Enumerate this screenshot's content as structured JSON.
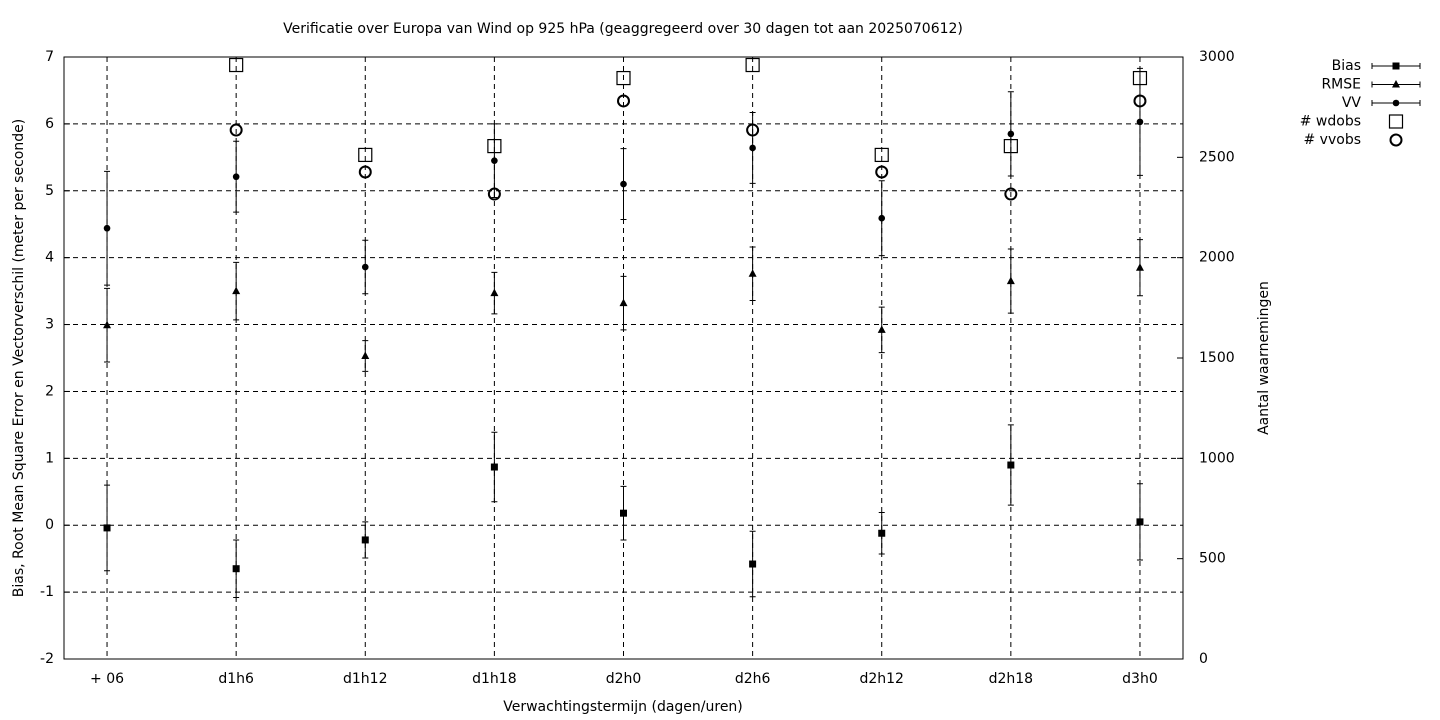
{
  "chart_data": {
    "type": "errorbar",
    "title": "Verificatie over Europa van Wind op 925 hPa (geaggregeerd over 30 dagen tot aan 2025070612)",
    "x_label": "Verwachtingstermijn (dagen/uren)",
    "y_label": "Bias, Root Mean Square Error en Vectorverschil (meter per seconde)",
    "y2_label": "Aantal waarnemingen",
    "categories": [
      "+ 06",
      "d1h6",
      "d1h12",
      "d1h18",
      "d2h0",
      "d2h6",
      "d2h12",
      "d2h18",
      "d3h0"
    ],
    "ylim": [
      -2,
      7
    ],
    "yticks": [
      -2,
      -1,
      0,
      1,
      2,
      3,
      4,
      5,
      6,
      7
    ],
    "y2lim": [
      0,
      3000
    ],
    "y2ticks": [
      0,
      500,
      1000,
      1500,
      2000,
      2500,
      3000
    ],
    "grid": true,
    "legend": "top-right",
    "series": [
      {
        "name": "Bias",
        "color": "#000000",
        "marker": "square",
        "values": [
          -0.04,
          -0.65,
          -0.22,
          0.87,
          0.18,
          -0.58,
          -0.12,
          0.9,
          0.05
        ],
        "errors": [
          0.64,
          0.43,
          0.27,
          0.52,
          0.4,
          0.49,
          0.31,
          0.6,
          0.57
        ]
      },
      {
        "name": "RMSE",
        "color": "#000000",
        "marker": "triangle",
        "values": [
          2.99,
          3.5,
          2.53,
          3.47,
          3.32,
          3.76,
          2.92,
          3.65,
          3.85
        ],
        "errors": [
          0.55,
          0.43,
          0.23,
          0.31,
          0.4,
          0.4,
          0.34,
          0.48,
          0.42
        ]
      },
      {
        "name": "VV",
        "color": "#000000",
        "marker": "circle",
        "values": [
          4.44,
          5.21,
          3.86,
          5.45,
          5.1,
          5.64,
          4.59,
          5.85,
          6.03
        ],
        "errors": [
          0.85,
          0.53,
          0.4,
          0.55,
          0.53,
          0.53,
          0.56,
          0.63,
          0.8
        ]
      },
      {
        "name": "# wdobs",
        "color": "#000000",
        "marker": "open-square",
        "axis": "y2",
        "values": [
          null,
          2960,
          2512,
          2556,
          2895,
          2960,
          2512,
          2556,
          2895
        ]
      },
      {
        "name": "# vvobs",
        "color": "#000000",
        "marker": "open-circle",
        "axis": "y2",
        "values": [
          null,
          2636,
          2427,
          2317,
          2781,
          2636,
          2427,
          2317,
          2781
        ]
      }
    ]
  }
}
